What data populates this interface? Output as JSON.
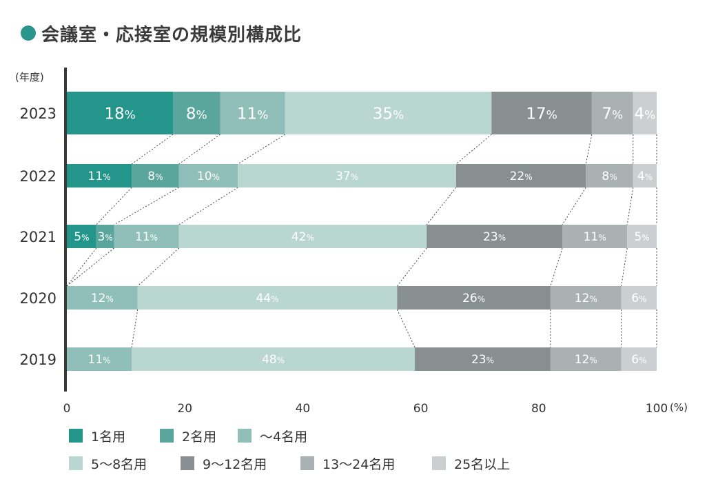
{
  "title": "会議室・応接室の規模別構成比",
  "colors": {
    "title_dot": "#2a958a",
    "axis": "#3a3a34",
    "connector": "#444444"
  },
  "chart_data": {
    "type": "bar",
    "orientation": "horizontal",
    "stacked": true,
    "title": "会議室・応接室の規模別構成比",
    "y_unit_label": "(年度)",
    "x_unit_label": "(%)",
    "xlim": [
      0,
      100
    ],
    "x_ticks": [
      "0",
      "20",
      "40",
      "60",
      "80",
      "100"
    ],
    "categories": [
      "2023",
      "2022",
      "2021",
      "2020",
      "2019"
    ],
    "series": [
      {
        "name": "1名用",
        "color": "#24958a",
        "values": [
          18,
          11,
          5,
          0,
          0
        ]
      },
      {
        "name": "2名用",
        "color": "#5aa69d",
        "values": [
          8,
          8,
          3,
          0,
          0
        ]
      },
      {
        "name": "〜4名用",
        "color": "#8fbfb8",
        "values": [
          11,
          10,
          11,
          12,
          11
        ]
      },
      {
        "name": "5〜8名用",
        "color": "#b9d6d1",
        "values": [
          35,
          37,
          42,
          44,
          48
        ]
      },
      {
        "name": "9〜12名用",
        "color": "#878f90",
        "values": [
          17,
          22,
          23,
          26,
          23
        ]
      },
      {
        "name": "13〜24名用",
        "color": "#aab1b3",
        "values": [
          7,
          8,
          11,
          12,
          12
        ]
      },
      {
        "name": "25名以上",
        "color": "#cbcfd1",
        "values": [
          4,
          4,
          5,
          6,
          6
        ]
      }
    ],
    "value_suffix": "%",
    "grid": false,
    "legend_position": "bottom"
  }
}
